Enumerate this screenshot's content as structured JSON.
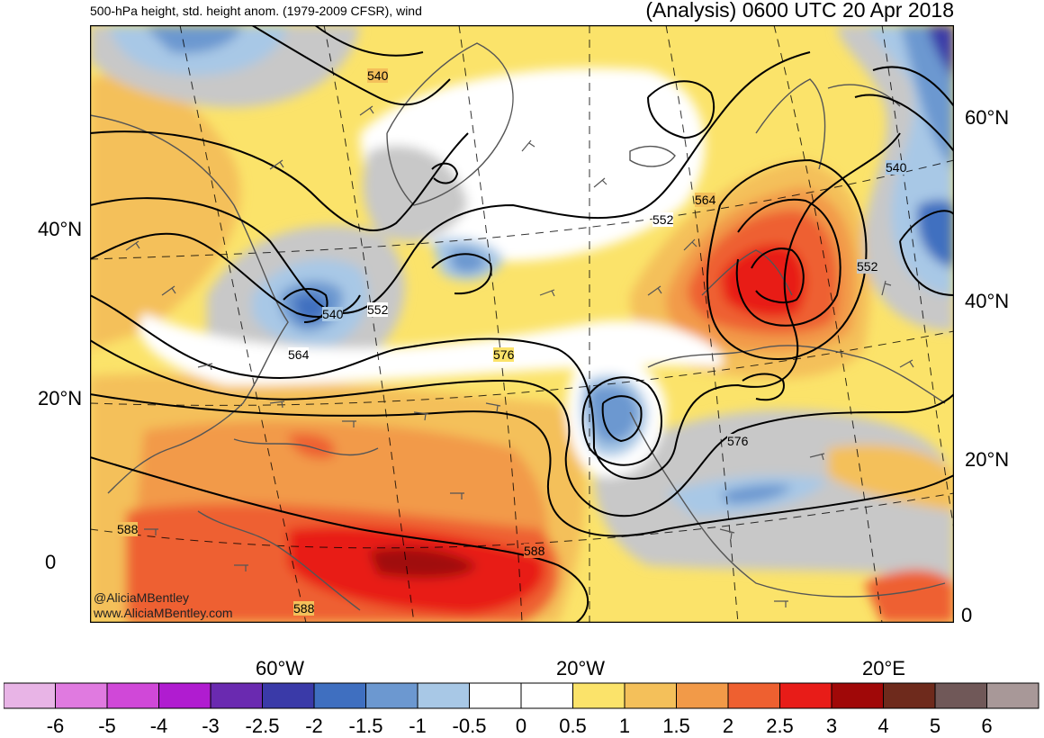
{
  "header": {
    "left": "500-hPa height, std. height anom. (1979-2009 CFSR), wind",
    "right": "(Analysis) 0600 UTC 20 Apr 2018"
  },
  "axes": {
    "left_lat": [
      "40°N",
      "20°N",
      "0"
    ],
    "right_lat": [
      "60°N",
      "40°N",
      "20°N",
      "0"
    ],
    "bottom_lon": [
      "60°W",
      "20°W",
      "20°E"
    ]
  },
  "contour_labels": [
    "540",
    "564",
    "552",
    "540",
    "552",
    "564",
    "576",
    "552",
    "540",
    "552",
    "564",
    "576",
    "588",
    "588",
    "588"
  ],
  "credit": [
    "@AliciaMBentley",
    "www.AliciaMBentley.com"
  ],
  "colorbar": {
    "ticks": [
      "-6",
      "-5",
      "-4",
      "-3",
      "-2.5",
      "-2",
      "-1.5",
      "-1",
      "-0.5",
      "0",
      "0.5",
      "1",
      "1.5",
      "2",
      "2.5",
      "3",
      "4",
      "5",
      "6"
    ],
    "colors": [
      "#e8b4e6",
      "#e07ae0",
      "#d048d8",
      "#b01cd0",
      "#6a2ab0",
      "#3a3aa8",
      "#3f6fc0",
      "#6c98d0",
      "#a8c8e6",
      "#ffffff",
      "#ffffff",
      "#fbe36a",
      "#f4c05a",
      "#f29a48",
      "#ee6030",
      "#e81c18",
      "#a00808",
      "#6e2a1c",
      "#705858",
      "#a89898"
    ]
  }
}
